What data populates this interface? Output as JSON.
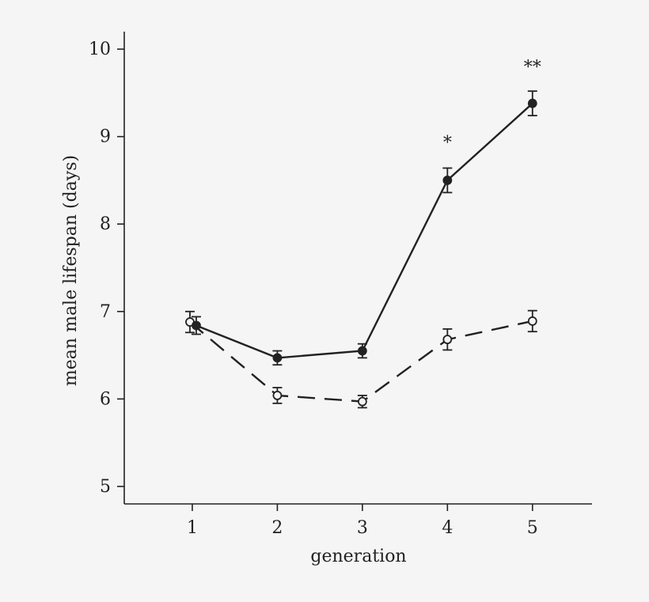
{
  "chart_data": {
    "type": "line",
    "xlabel": "generation",
    "ylabel": "mean male lifespan (days)",
    "x": [
      1,
      2,
      3,
      4,
      5
    ],
    "xlim": [
      0.2,
      5.7
    ],
    "ylim": [
      4.8,
      10.2
    ],
    "yticks": [
      5,
      6,
      7,
      8,
      9,
      10
    ],
    "xticks": [
      1,
      2,
      3,
      4,
      5
    ],
    "series": [
      {
        "key": "filled",
        "style": "solid",
        "marker": "filled-circle",
        "color": "#222222",
        "values": [
          6.84,
          6.47,
          6.55,
          8.5,
          9.38
        ],
        "errors": [
          0.1,
          0.08,
          0.08,
          0.14,
          0.14
        ]
      },
      {
        "key": "open",
        "style": "dashed",
        "marker": "open-circle",
        "color": "#222222",
        "values": [
          6.88,
          6.04,
          5.97,
          6.68,
          6.89
        ],
        "errors": [
          0.12,
          0.09,
          0.07,
          0.12,
          0.12
        ]
      }
    ],
    "annotations": [
      {
        "x": 4,
        "y": 8.94,
        "text": "*"
      },
      {
        "x": 5,
        "y": 9.8,
        "text": "**"
      }
    ]
  }
}
